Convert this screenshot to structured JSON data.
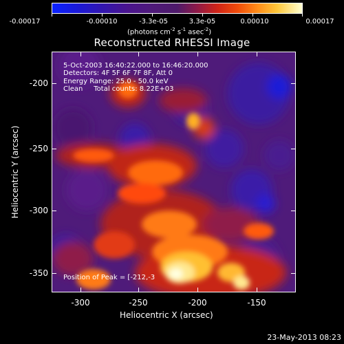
{
  "colorbar": {
    "tick_labels": [
      "-0.00017",
      "-0.00010",
      "-3.3e-05",
      "3.3e-05",
      "0.00010",
      "0.00017"
    ],
    "units_prefix": "(photons cm",
    "units_sup1": "-2",
    "units_mid1": " s",
    "units_sup2": "-1",
    "units_mid2": " asec",
    "units_sup3": "-2",
    "units_suffix": ")"
  },
  "title": "Reconstructed RHESSI Image",
  "info": {
    "time_range": "5-Oct-2003 16:40:22.000 to 16:46:20.000",
    "detectors": "Detectors: 4F 5F 6F 7F 8F, Att 0",
    "energy": "Energy Range: 25.0 - 50.0 keV",
    "clean": "Clean     Total counts: 8.22E+03",
    "peak": "Position of Peak = [-212,-3"
  },
  "axes": {
    "x_title": "Heliocentric X (arcsec)",
    "y_title": "Heliocentric Y (arcsec)",
    "x_tick_labels": [
      "-300",
      "-250",
      "-200",
      "-150"
    ],
    "y_tick_labels": [
      "-200",
      "-250",
      "-300",
      "-350"
    ]
  },
  "timestamp": "23-May-2013 08:23",
  "colors": {
    "background": "#000000",
    "low": "#0a22ff",
    "mid": "#4e1a6a",
    "high": "#ff3a0a",
    "peak": "#ffffd0"
  }
}
